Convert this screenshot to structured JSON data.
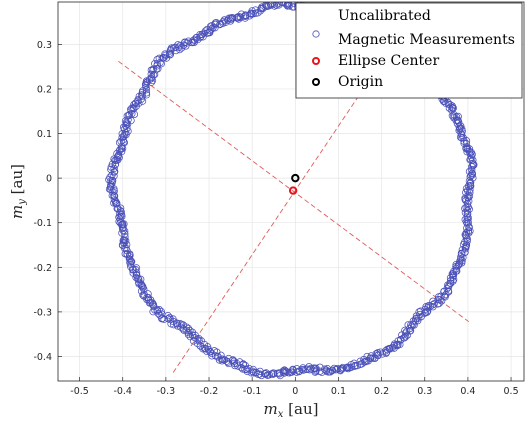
{
  "chart_data": {
    "type": "scatter",
    "xlabel": "m_x [au]",
    "ylabel": "m_y [au]",
    "xlim": [
      -0.55,
      0.53
    ],
    "ylim": [
      -0.455,
      0.395
    ],
    "xticks": [
      -0.5,
      -0.4,
      -0.3,
      -0.2,
      -0.1,
      0,
      0.1,
      0.2,
      0.3,
      0.4,
      0.5
    ],
    "yticks": [
      -0.4,
      -0.3,
      -0.2,
      -0.1,
      0,
      0.1,
      0.2,
      0.3
    ],
    "xtick_labels": [
      "-0.5",
      "-0.4",
      "-0.3",
      "-0.2",
      "-0.1",
      "0",
      "0.1",
      "0.2",
      "0.3",
      "0.4",
      "0.5"
    ],
    "ytick_labels": [
      "-0.4",
      "-0.3",
      "-0.2",
      "-0.1",
      "0",
      "0.1",
      "0.2",
      "0.3"
    ],
    "grid": true,
    "legend_position": "top-right",
    "series": [
      {
        "name": "Uncalibrated Magnetic Measurements",
        "marker": "circle-open",
        "color": "#4a50b8",
        "ellipse_model": {
          "center": [
            -0.005,
            -0.028
          ],
          "semi_axis_a": 0.415,
          "semi_axis_b": 0.408,
          "angle_deg": -35,
          "count": 900
        }
      },
      {
        "name": "Ellipse Center",
        "marker": "circle-open",
        "color": "#e8141c",
        "points": [
          [
            -0.005,
            -0.028
          ]
        ]
      },
      {
        "name": "Origin",
        "marker": "circle-open",
        "color": "#000000",
        "points": [
          [
            0,
            0
          ]
        ]
      }
    ],
    "axes_lines": [
      {
        "from": [
          -0.41,
          0.262
        ],
        "to": [
          0.402,
          -0.322
        ],
        "color": "#e05a5a",
        "style": "dashed"
      },
      {
        "from": [
          -0.283,
          -0.436
        ],
        "to": [
          0.247,
          0.329
        ],
        "color": "#e05a5a",
        "style": "dashed"
      }
    ],
    "legend": {
      "lines": [
        [
          "Uncalibrated",
          "Magnetic Measurements"
        ],
        [
          "Ellipse Center"
        ],
        [
          "Origin"
        ]
      ]
    }
  }
}
